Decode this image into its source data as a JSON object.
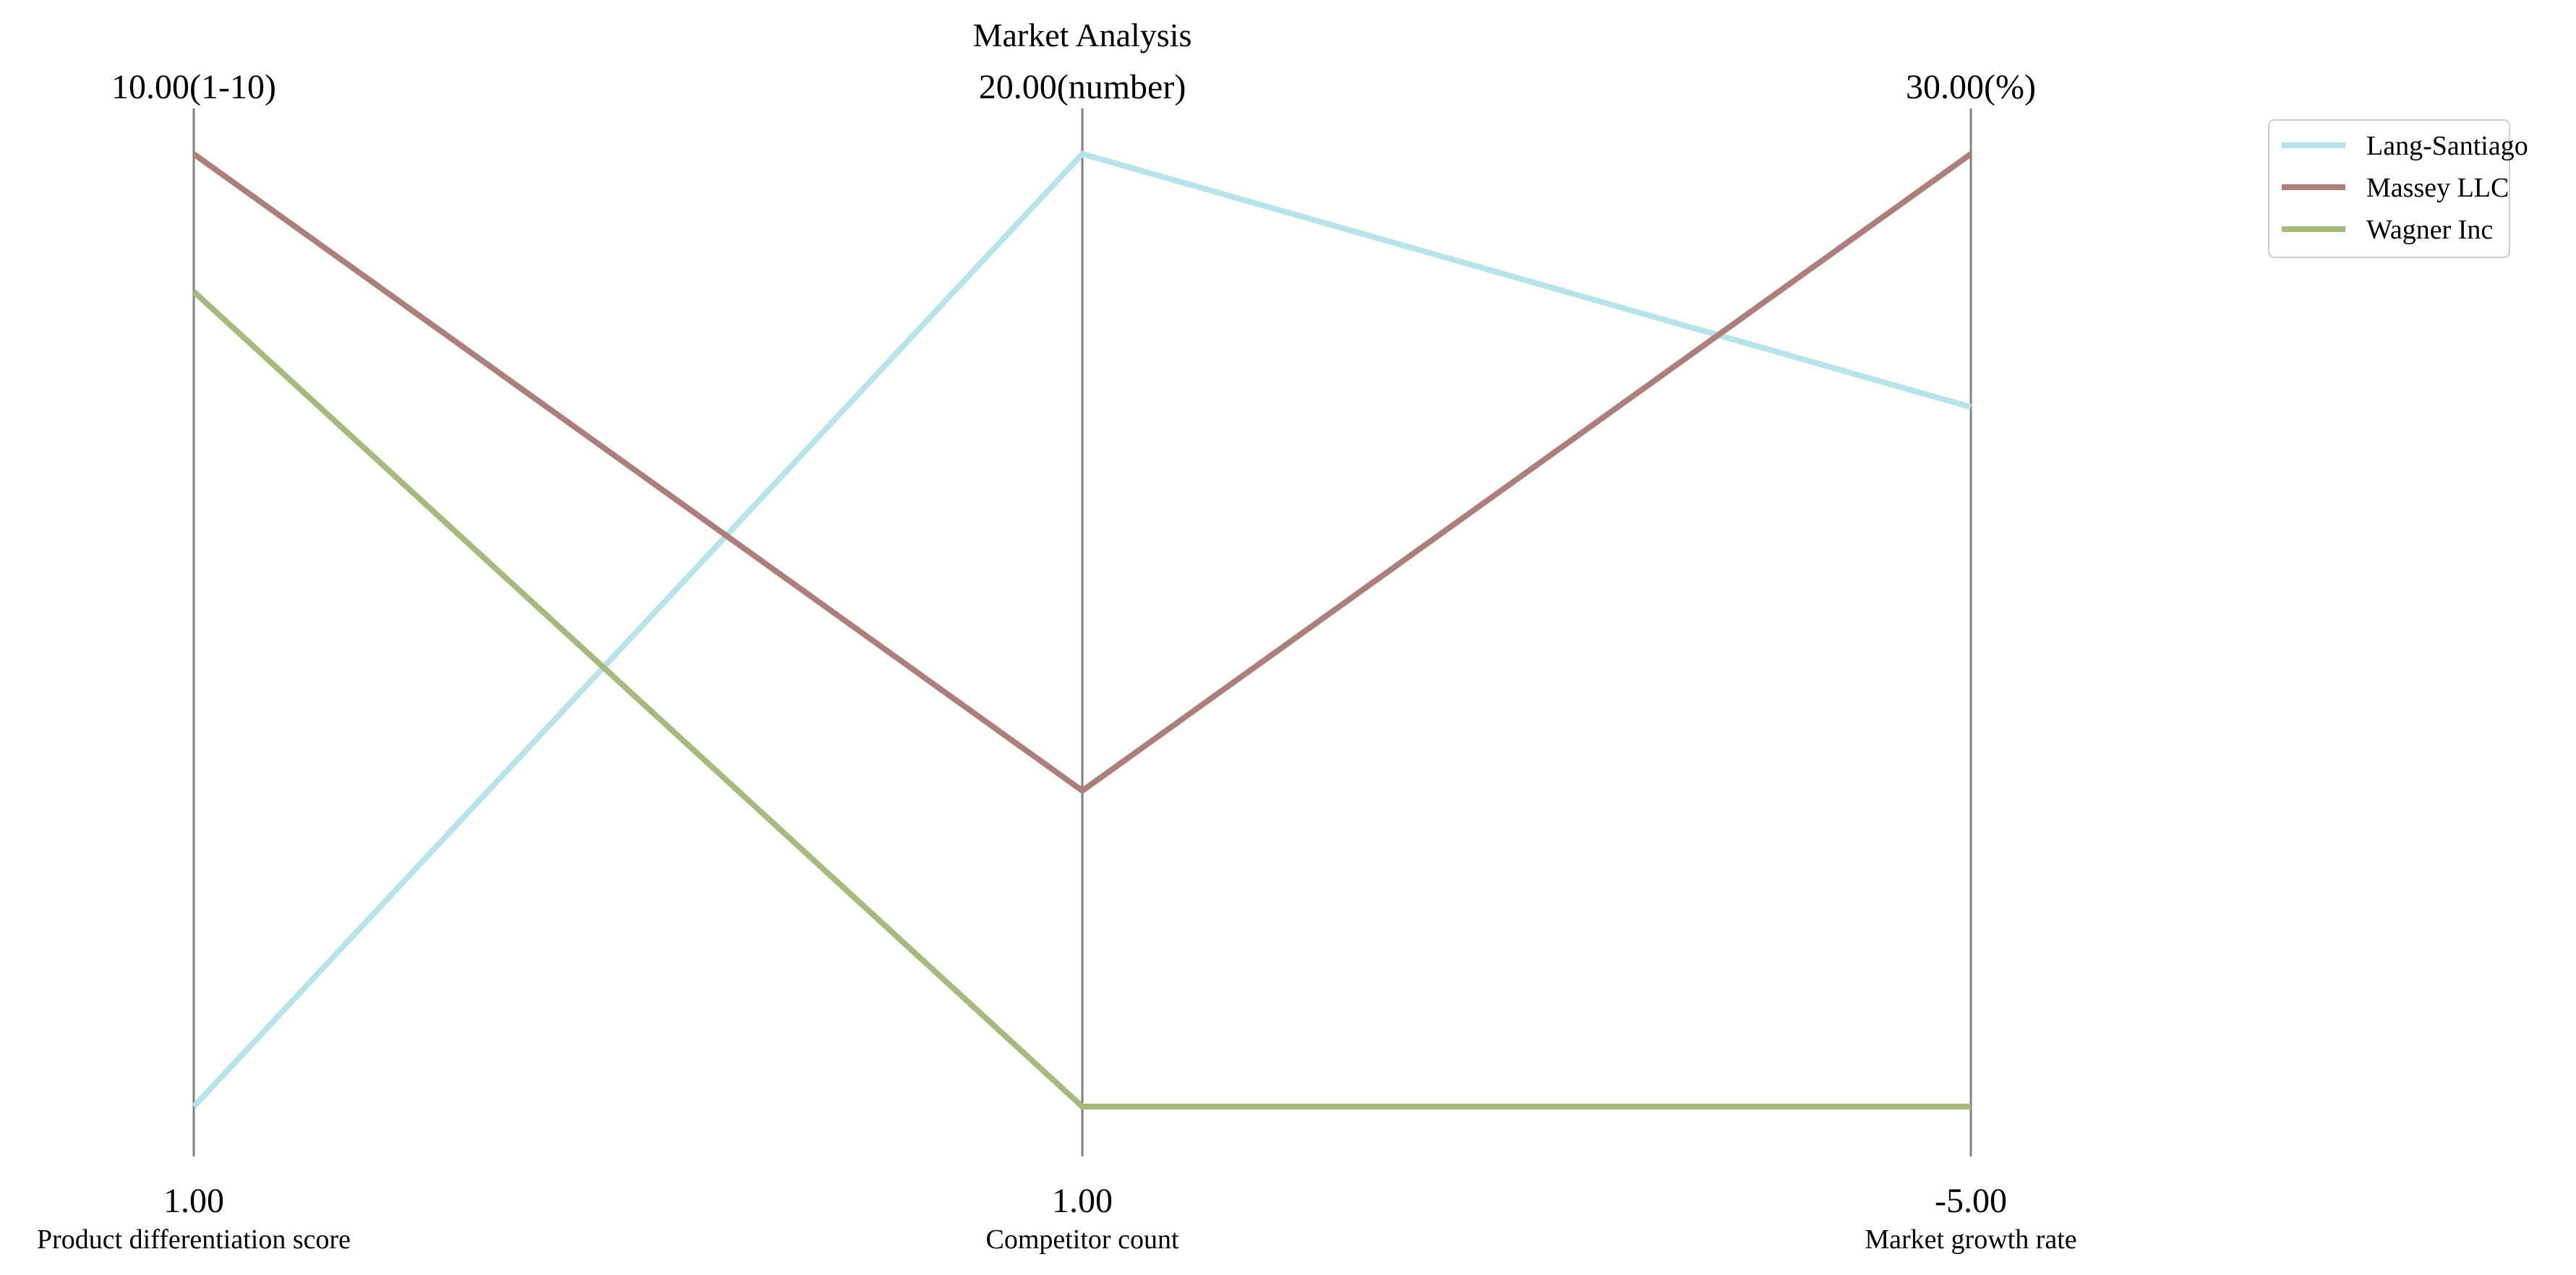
{
  "chart_data": {
    "type": "parallel-coordinates",
    "title": "Market Analysis",
    "axes": [
      {
        "name": "Product differentiation score",
        "min": 1.0,
        "max": 10.0,
        "min_label": "1.00",
        "max_label": "10.00(1-10)"
      },
      {
        "name": "Competitor count",
        "min": 1.0,
        "max": 20.0,
        "min_label": "1.00",
        "max_label": "20.00(number)"
      },
      {
        "name": "Market growth rate",
        "min": -5.0,
        "max": 30.0,
        "min_label": "-5.00",
        "max_label": "30.00(%)"
      }
    ],
    "series": [
      {
        "name": "Lang-Santiago",
        "color": "#b7e3ea",
        "values": [
          1.0,
          20.0,
          20.7
        ]
      },
      {
        "name": "Massey LLC",
        "color": "#ac7f7a",
        "values": [
          10.0,
          7.3,
          30.0
        ]
      },
      {
        "name": "Wagner Inc",
        "color": "#a7ba7d",
        "values": [
          8.7,
          1.0,
          -5.0
        ]
      }
    ],
    "legend_position": "top-right",
    "grid": false
  }
}
